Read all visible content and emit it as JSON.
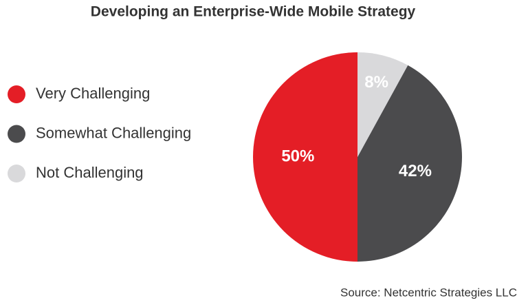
{
  "chart_data": {
    "type": "pie",
    "title": "Developing an Enterprise-Wide Mobile Strategy",
    "categories": [
      "Very Challenging",
      "Somewhat Challenging",
      "Not Challenging"
    ],
    "values": [
      50,
      42,
      8
    ],
    "value_labels": [
      "50%",
      "42%",
      "8%"
    ],
    "colors": [
      "#e41e26",
      "#4b4b4d",
      "#d9d9db"
    ],
    "legend": "left",
    "source": "Source: Netcentric Strategies LLC"
  }
}
